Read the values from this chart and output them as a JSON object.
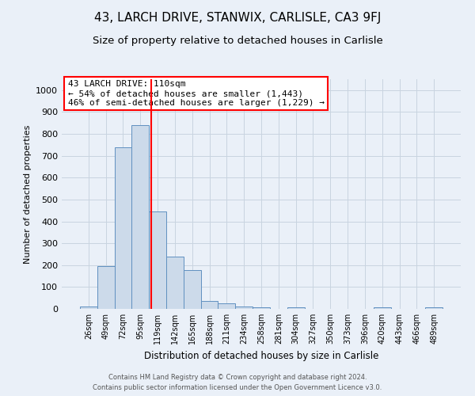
{
  "title": "43, LARCH DRIVE, STANWIX, CARLISLE, CA3 9FJ",
  "subtitle": "Size of property relative to detached houses in Carlisle",
  "xlabel": "Distribution of detached houses by size in Carlisle",
  "ylabel": "Number of detached properties",
  "bin_labels": [
    "26sqm",
    "49sqm",
    "72sqm",
    "95sqm",
    "119sqm",
    "142sqm",
    "165sqm",
    "188sqm",
    "211sqm",
    "234sqm",
    "258sqm",
    "281sqm",
    "304sqm",
    "327sqm",
    "350sqm",
    "373sqm",
    "396sqm",
    "420sqm",
    "443sqm",
    "466sqm",
    "489sqm"
  ],
  "bar_values": [
    10,
    197,
    738,
    840,
    447,
    238,
    178,
    35,
    25,
    12,
    8,
    0,
    8,
    0,
    0,
    0,
    0,
    8,
    0,
    0,
    8
  ],
  "bar_color": "#ccdaea",
  "bar_edge_color": "#6090c0",
  "vline_x": 3.62,
  "vline_color": "red",
  "annotation_box_text": "43 LARCH DRIVE: 110sqm\n← 54% of detached houses are smaller (1,443)\n46% of semi-detached houses are larger (1,229) →",
  "annotation_box_color": "white",
  "annotation_box_edge_color": "red",
  "grid_color": "#c8d4e0",
  "background_color": "#eaf0f8",
  "ylim": [
    0,
    1050
  ],
  "yticks": [
    0,
    100,
    200,
    300,
    400,
    500,
    600,
    700,
    800,
    900,
    1000
  ],
  "footer_line1": "Contains HM Land Registry data © Crown copyright and database right 2024.",
  "footer_line2": "Contains public sector information licensed under the Open Government Licence v3.0.",
  "title_fontsize": 11,
  "subtitle_fontsize": 9.5
}
